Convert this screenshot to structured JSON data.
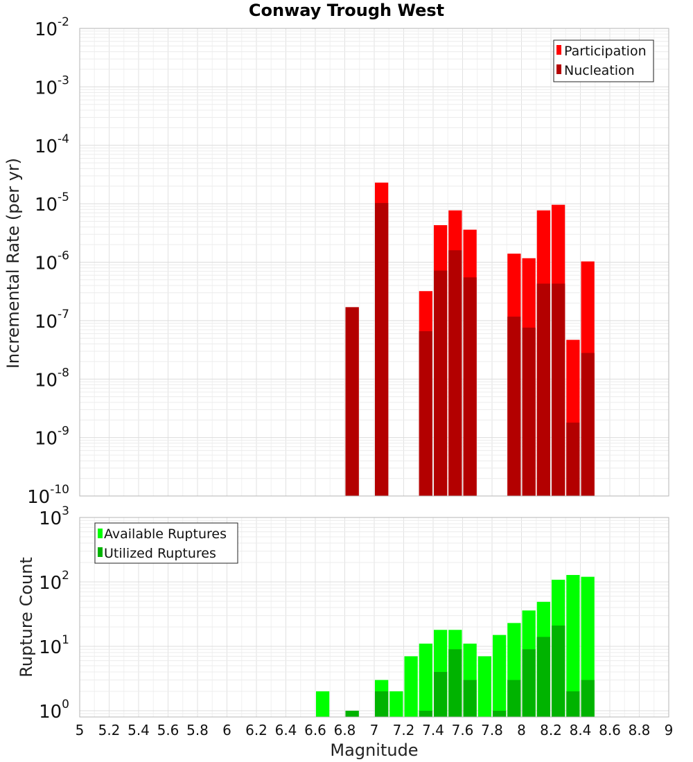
{
  "chart_data": [
    {
      "type": "bar",
      "title": "Conway Trough West",
      "xlabel": "",
      "ylabel": "Incremental Rate (per yr)",
      "yscale": "log",
      "ylim": [
        1e-10,
        0.01
      ],
      "xlim": [
        5,
        9
      ],
      "bar_width": 0.1,
      "grid": true,
      "legend_position": "top-right",
      "series": [
        {
          "name": "Participation",
          "color": "#ff0000",
          "x": [
            6.85,
            7.05,
            7.35,
            7.45,
            7.55,
            7.65,
            7.95,
            8.05,
            8.15,
            8.25,
            8.35,
            8.45
          ],
          "values": [
            1.7e-07,
            2.3e-05,
            3.2e-07,
            4.3e-06,
            7.7e-06,
            3.6e-06,
            1.4e-06,
            1.17e-06,
            7.7e-06,
            9.6e-06,
            4.7e-08,
            1.03e-06
          ]
        },
        {
          "name": "Nucleation",
          "color": "#b30000",
          "x": [
            6.85,
            7.05,
            7.35,
            7.45,
            7.55,
            7.65,
            7.95,
            8.05,
            8.15,
            8.25,
            8.35,
            8.45
          ],
          "values": [
            1.7e-07,
            1.03e-05,
            6.6e-08,
            7.2e-07,
            1.6e-06,
            5.5e-07,
            1.17e-07,
            7.6e-08,
            4.3e-07,
            4.3e-07,
            1.8e-09,
            2.8e-08
          ]
        }
      ]
    },
    {
      "type": "bar",
      "title": "",
      "xlabel": "Magnitude",
      "ylabel": "Rupture Count",
      "yscale": "log",
      "ylim": [
        0.8,
        1000
      ],
      "xlim": [
        5,
        9
      ],
      "bar_width": 0.1,
      "grid": true,
      "legend_position": "top-left",
      "x_ticks": [
        "5",
        "5.2",
        "5.4",
        "5.6",
        "5.8",
        "6",
        "6.2",
        "6.4",
        "6.6",
        "6.8",
        "7",
        "7.2",
        "7.4",
        "7.6",
        "7.8",
        "8",
        "8.2",
        "8.4",
        "8.6",
        "8.8",
        "9"
      ],
      "series": [
        {
          "name": "Available Ruptures",
          "color": "#00ff00",
          "x": [
            6.65,
            6.85,
            7.05,
            7.15,
            7.25,
            7.35,
            7.45,
            7.55,
            7.65,
            7.75,
            7.85,
            7.95,
            8.05,
            8.15,
            8.25,
            8.35,
            8.45
          ],
          "values": [
            2,
            1,
            3,
            2,
            7,
            11,
            18,
            18,
            11,
            7,
            15,
            23,
            36,
            49,
            108,
            128,
            120
          ]
        },
        {
          "name": "Utilized Ruptures",
          "color": "#00b300",
          "x": [
            6.85,
            7.05,
            7.35,
            7.45,
            7.55,
            7.65,
            7.85,
            7.95,
            8.05,
            8.15,
            8.25,
            8.35,
            8.45
          ],
          "values": [
            1,
            2,
            1,
            4,
            9,
            3,
            1,
            3,
            9,
            14,
            21,
            2,
            3
          ]
        }
      ]
    }
  ]
}
